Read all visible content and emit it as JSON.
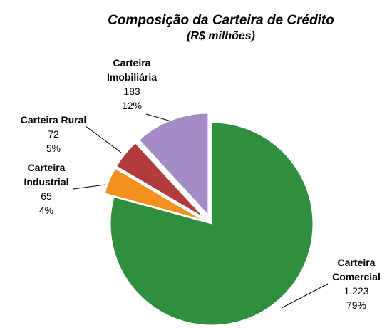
{
  "chart_data": {
    "type": "pie",
    "title": "Composição da Carteira de Crédito",
    "subtitle": "(R$ milhões)",
    "categories": [
      "Carteira Comercial",
      "Carteira Industrial",
      "Carteira Rural",
      "Carteira Imobiliária"
    ],
    "values": [
      1223,
      65,
      72,
      183
    ],
    "value_labels": [
      "1.223",
      "65",
      "72",
      "183"
    ],
    "percentages": [
      79,
      4,
      5,
      12
    ],
    "percentage_labels": [
      "79%",
      "4%",
      "5%",
      "12%"
    ],
    "colors": [
      "#2f8f3f",
      "#f39020",
      "#b23b3b",
      "#a48bc6"
    ]
  }
}
